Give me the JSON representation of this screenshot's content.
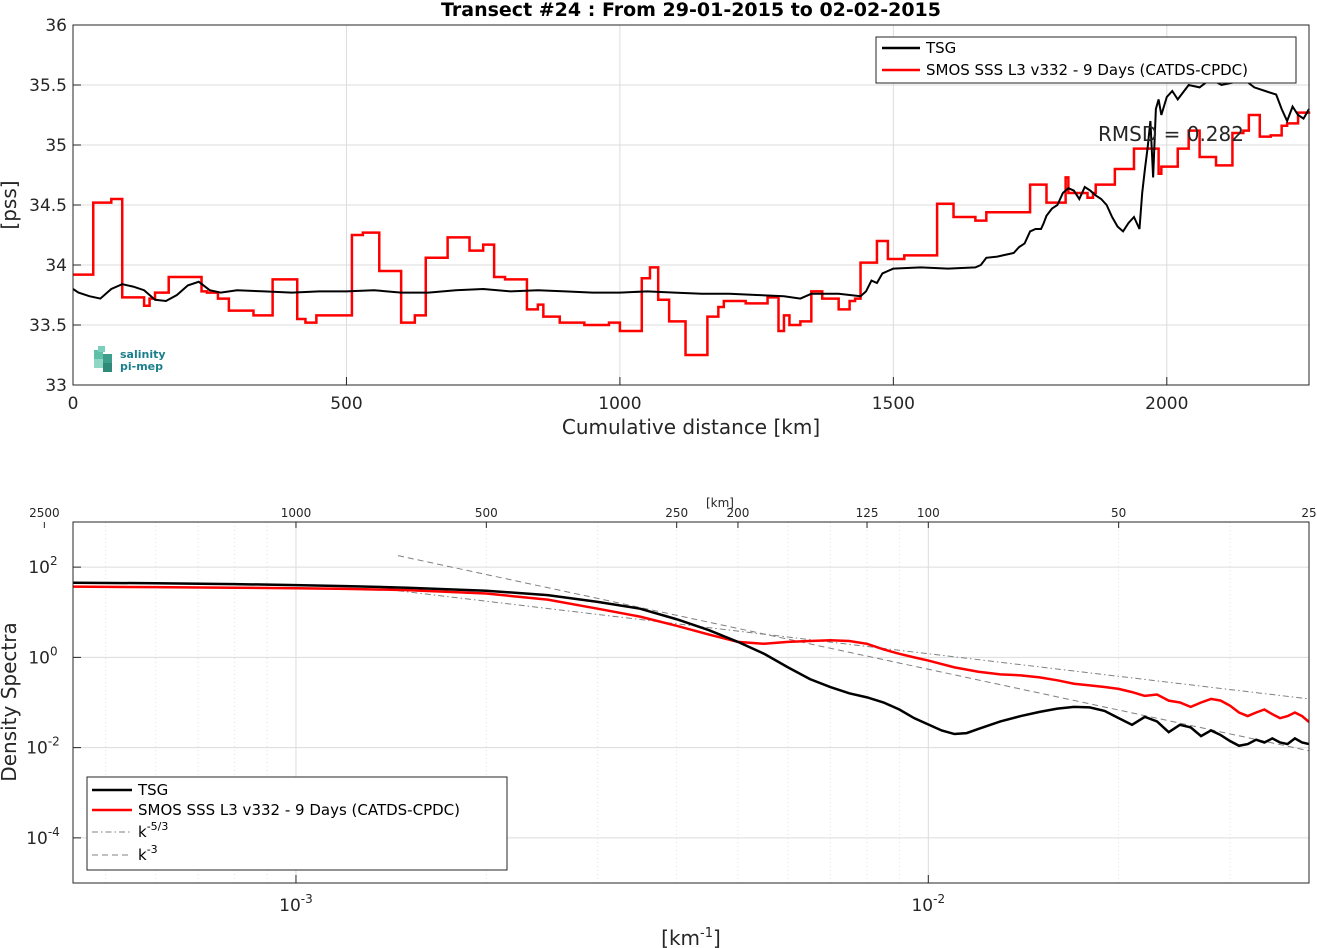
{
  "chart_data": [
    {
      "type": "line",
      "title": "Transect #24 : From 29-01-2015 to 02-02-2015",
      "xlabel": "Cumulative distance [km]",
      "ylabel": "[pss]",
      "xlim": [
        0,
        2260
      ],
      "ylim": [
        33,
        36
      ],
      "x_ticks": [
        "0",
        "500",
        "1000",
        "1500",
        "2000"
      ],
      "y_ticks": [
        "33",
        "33.5",
        "34",
        "34.5",
        "35",
        "35.5",
        "36"
      ],
      "grid": true,
      "legend_position": "top-right",
      "annotation": "RMSD = 0.282",
      "logo": {
        "line1": "salinity",
        "line2": "pi-mep"
      },
      "series": [
        {
          "name": "TSG",
          "color": "#000000",
          "x": [
            0,
            10,
            30,
            50,
            70,
            90,
            110,
            130,
            150,
            170,
            190,
            210,
            230,
            250,
            270,
            300,
            350,
            400,
            450,
            500,
            550,
            600,
            650,
            700,
            750,
            800,
            850,
            900,
            950,
            1000,
            1050,
            1100,
            1150,
            1200,
            1250,
            1300,
            1330,
            1350,
            1380,
            1400,
            1420,
            1440,
            1450,
            1460,
            1470,
            1480,
            1500,
            1550,
            1600,
            1650,
            1660,
            1670,
            1690,
            1700,
            1720,
            1730,
            1740,
            1750,
            1760,
            1770,
            1775,
            1780,
            1790,
            1800,
            1810,
            1820,
            1830,
            1840,
            1850,
            1860,
            1870,
            1880,
            1890,
            1900,
            1910,
            1920,
            1930,
            1940,
            1950,
            1955,
            1960,
            1965,
            1970,
            1975,
            1980,
            1985,
            1990,
            2000,
            2010,
            2020,
            2040,
            2060,
            2080,
            2100,
            2120,
            2140,
            2160,
            2180,
            2200,
            2210,
            2220,
            2230,
            2240,
            2250,
            2260
          ],
          "y": [
            33.8,
            33.77,
            33.74,
            33.72,
            33.8,
            33.84,
            33.82,
            33.79,
            33.71,
            33.7,
            33.75,
            33.83,
            33.86,
            33.79,
            33.77,
            33.79,
            33.78,
            33.77,
            33.78,
            33.78,
            33.79,
            33.77,
            33.77,
            33.79,
            33.8,
            33.78,
            33.79,
            33.78,
            33.77,
            33.77,
            33.78,
            33.77,
            33.76,
            33.76,
            33.75,
            33.74,
            33.72,
            33.76,
            33.76,
            33.76,
            33.75,
            33.74,
            33.78,
            33.87,
            33.85,
            33.93,
            33.97,
            33.98,
            33.97,
            33.98,
            34.0,
            34.06,
            34.07,
            34.08,
            34.1,
            34.15,
            34.18,
            34.28,
            34.3,
            34.3,
            34.35,
            34.41,
            34.47,
            34.5,
            34.6,
            34.64,
            34.62,
            34.55,
            34.65,
            34.62,
            34.58,
            34.55,
            34.5,
            34.4,
            34.32,
            34.28,
            34.35,
            34.4,
            34.3,
            34.6,
            34.8,
            34.98,
            35.2,
            34.73,
            35.3,
            35.38,
            35.25,
            35.4,
            35.45,
            35.38,
            35.5,
            35.48,
            35.55,
            35.5,
            35.52,
            35.55,
            35.48,
            35.45,
            35.42,
            35.3,
            35.2,
            35.32,
            35.25,
            35.22,
            35.3
          ]
        },
        {
          "name": "SMOS SSS L3 v332 - 9 Days (CATDS-CPDC)",
          "color": "#ff0000",
          "x": [
            0,
            37,
            70,
            90,
            130,
            140,
            150,
            175,
            185,
            235,
            245,
            265,
            285,
            330,
            365,
            410,
            425,
            445,
            470,
            510,
            530,
            560,
            600,
            625,
            635,
            645,
            650,
            685,
            725,
            750,
            770,
            790,
            830,
            850,
            860,
            890,
            935,
            980,
            1000,
            1040,
            1055,
            1070,
            1090,
            1120,
            1150,
            1160,
            1180,
            1190,
            1210,
            1230,
            1270,
            1290,
            1300,
            1310,
            1330,
            1350,
            1370,
            1400,
            1420,
            1430,
            1440,
            1470,
            1490,
            1520,
            1540,
            1580,
            1610,
            1650,
            1670,
            1690,
            1750,
            1780,
            1815,
            1820,
            1825,
            1855,
            1865,
            1870,
            1905,
            1920,
            1940,
            1970,
            1985,
            1990,
            2010,
            2020,
            2040,
            2060,
            2090,
            2120,
            2140,
            2150,
            2170,
            2190,
            2210,
            2220,
            2240,
            2260
          ],
          "y": [
            33.92,
            34.52,
            34.55,
            33.73,
            33.66,
            33.72,
            33.77,
            33.9,
            33.9,
            33.78,
            33.77,
            33.72,
            33.62,
            33.58,
            33.88,
            33.55,
            33.52,
            33.58,
            33.58,
            34.25,
            34.27,
            33.95,
            33.52,
            33.58,
            33.58,
            34.06,
            34.06,
            34.23,
            34.12,
            34.17,
            33.9,
            33.88,
            33.63,
            33.67,
            33.57,
            33.52,
            33.5,
            33.52,
            33.45,
            33.89,
            33.98,
            33.71,
            33.53,
            33.25,
            33.25,
            33.57,
            33.65,
            33.7,
            33.7,
            33.68,
            33.73,
            33.45,
            33.58,
            33.5,
            33.53,
            33.78,
            33.72,
            33.63,
            33.7,
            33.72,
            34.02,
            34.2,
            34.05,
            34.08,
            34.08,
            34.51,
            34.4,
            34.37,
            34.44,
            34.44,
            34.67,
            34.52,
            34.73,
            34.6,
            34.6,
            34.56,
            34.6,
            34.67,
            34.8,
            34.8,
            34.97,
            34.97,
            34.76,
            34.82,
            34.82,
            34.97,
            35.12,
            34.9,
            34.83,
            35.1,
            35.12,
            35.25,
            35.07,
            35.08,
            35.16,
            35.18,
            35.27,
            35.28
          ]
        }
      ]
    },
    {
      "type": "line",
      "title": "",
      "xlabel": "[km-1]",
      "ylabel": "Density Spectra",
      "x_scale": "log",
      "y_scale": "log",
      "xlim": [
        0.000444,
        0.04
      ],
      "ylim": [
        1e-05,
        1000
      ],
      "x_ticks": [
        "10-3",
        "10-2"
      ],
      "y_ticks": [
        "10-4",
        "10-2",
        "100",
        "102"
      ],
      "top_axis_label": "[km]",
      "top_axis_ticks": [
        "2500",
        "1000",
        "500",
        "250",
        "200",
        "125",
        "100",
        "50",
        "25"
      ],
      "grid": true,
      "legend_position": "bottom-left",
      "series": [
        {
          "name": "TSG",
          "color": "#000000",
          "x": [
            0.000444,
            0.0006,
            0.0008,
            0.001,
            0.0012,
            0.0015,
            0.002,
            0.0025,
            0.003,
            0.0035,
            0.004,
            0.0045,
            0.005,
            0.0055,
            0.006,
            0.0065,
            0.007,
            0.0075,
            0.008,
            0.0085,
            0.009,
            0.0095,
            0.0105,
            0.011,
            0.0115,
            0.012,
            0.013,
            0.014,
            0.015,
            0.016,
            0.017,
            0.018,
            0.019,
            0.02,
            0.021,
            0.022,
            0.023,
            0.024,
            0.025,
            0.026,
            0.027,
            0.028,
            0.029,
            0.03,
            0.031,
            0.032,
            0.033,
            0.034,
            0.035,
            0.036,
            0.037,
            0.038,
            0.039,
            0.04
          ],
          "y": [
            45,
            44,
            42,
            40,
            38,
            35,
            30,
            24,
            17,
            12,
            7,
            4,
            2.2,
            1.2,
            0.6,
            0.33,
            0.22,
            0.16,
            0.13,
            0.1,
            0.07,
            0.045,
            0.024,
            0.02,
            0.021,
            0.026,
            0.038,
            0.05,
            0.062,
            0.073,
            0.08,
            0.078,
            0.065,
            0.045,
            0.032,
            0.048,
            0.038,
            0.022,
            0.032,
            0.028,
            0.018,
            0.024,
            0.019,
            0.014,
            0.011,
            0.012,
            0.015,
            0.013,
            0.016,
            0.013,
            0.012,
            0.016,
            0.013,
            0.012
          ]
        },
        {
          "name": "SMOS SSS L3 v332 - 9 Days (CATDS-CPDC)",
          "color": "#ff0000",
          "x": [
            0.000444,
            0.0006,
            0.0008,
            0.001,
            0.0012,
            0.0015,
            0.002,
            0.0025,
            0.003,
            0.0035,
            0.004,
            0.0045,
            0.005,
            0.0055,
            0.006,
            0.0065,
            0.007,
            0.0075,
            0.008,
            0.0085,
            0.009,
            0.0095,
            0.01,
            0.011,
            0.012,
            0.013,
            0.014,
            0.015,
            0.016,
            0.017,
            0.018,
            0.019,
            0.02,
            0.021,
            0.022,
            0.023,
            0.024,
            0.025,
            0.026,
            0.027,
            0.028,
            0.029,
            0.03,
            0.031,
            0.032,
            0.033,
            0.034,
            0.035,
            0.036,
            0.037,
            0.038,
            0.039,
            0.04
          ],
          "y": [
            37,
            36,
            35,
            34,
            33,
            31,
            26,
            19,
            12,
            8,
            5,
            3.2,
            2.2,
            2.0,
            2.2,
            2.3,
            2.4,
            2.3,
            2.0,
            1.5,
            1.2,
            1.0,
            0.85,
            0.6,
            0.48,
            0.42,
            0.4,
            0.36,
            0.31,
            0.26,
            0.24,
            0.22,
            0.2,
            0.17,
            0.14,
            0.15,
            0.11,
            0.1,
            0.08,
            0.1,
            0.12,
            0.11,
            0.085,
            0.06,
            0.05,
            0.06,
            0.07,
            0.055,
            0.045,
            0.05,
            0.06,
            0.05,
            0.037
          ]
        },
        {
          "name": "k-5/3",
          "color": "#808080",
          "x": [
            0.00145,
            0.04
          ],
          "y": [
            30,
            0.12
          ]
        },
        {
          "name": "k-3",
          "color": "#808080",
          "x": [
            0.00145,
            0.04
          ],
          "y": [
            180,
            0.0085
          ]
        }
      ]
    }
  ]
}
